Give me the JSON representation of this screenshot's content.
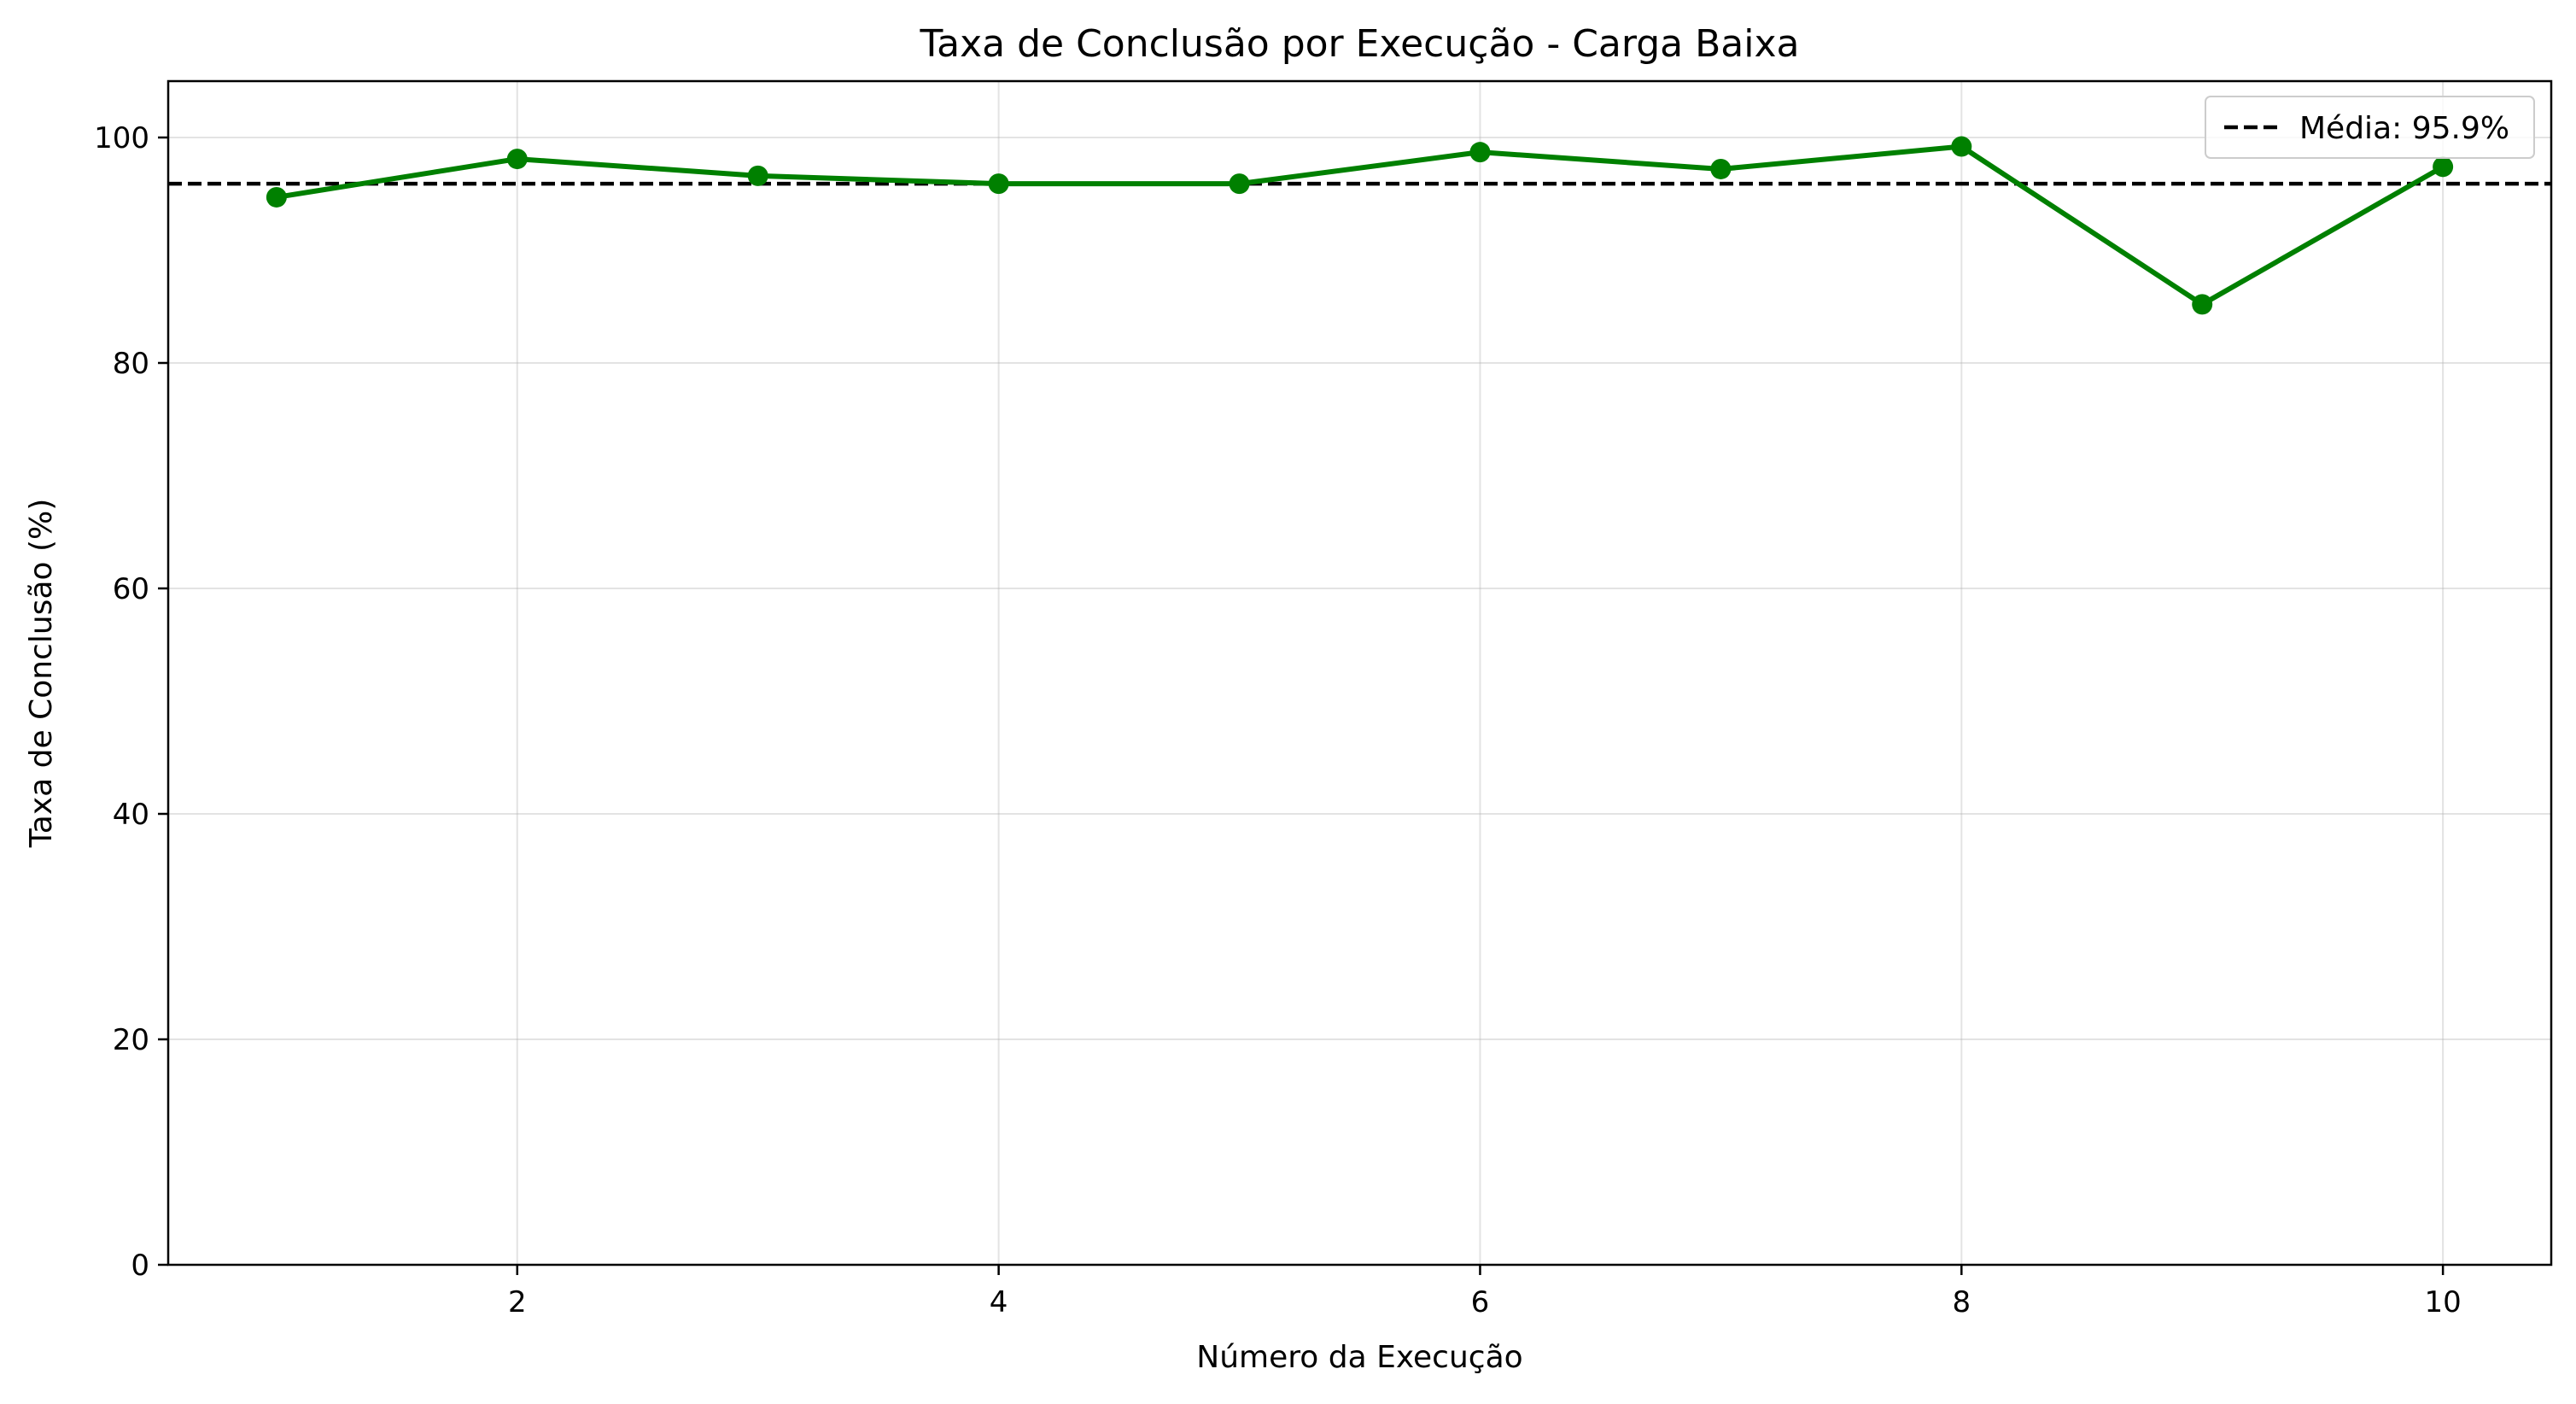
{
  "chart_data": {
    "type": "line",
    "title": "Taxa de Conclusão por Execução - Carga Baixa",
    "xlabel": "Número da Execução",
    "ylabel": "Taxa de Conclusão (%)",
    "xlim": [
      0.55,
      10.45
    ],
    "ylim": [
      0,
      105
    ],
    "x_ticks": [
      2,
      4,
      6,
      8,
      10
    ],
    "y_ticks": [
      0,
      20,
      40,
      60,
      80,
      100
    ],
    "grid": true,
    "legend_position": "top-right",
    "series": [
      {
        "x": [
          1,
          2,
          3,
          4,
          5,
          6,
          7,
          8,
          9,
          10
        ],
        "values": [
          94.7,
          98.1,
          96.6,
          95.9,
          95.9,
          98.7,
          97.2,
          99.2,
          85.2,
          97.4
        ],
        "color": "#008000",
        "marker": "circle"
      }
    ],
    "reference_lines": [
      {
        "y": 95.9,
        "label": "Média: 95.9%",
        "style": "dashed",
        "color": "#000000"
      }
    ]
  }
}
